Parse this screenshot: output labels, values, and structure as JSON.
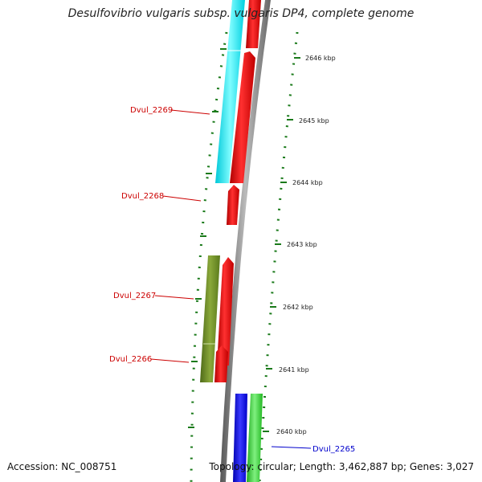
{
  "title": "Desulfovibrio vulgaris subsp. vulgaris DP4, complete genome",
  "footer": {
    "accession": "Accession: NC_008751",
    "topology": "Topology: circular; Length: 3,462,887 bp; Genes: 3,027"
  },
  "ticks": [
    "2646 kbp",
    "2645 kbp",
    "2644 kbp",
    "2643 kbp",
    "2642 kbp",
    "2641 kbp",
    "2640 kbp"
  ],
  "genes": {
    "dvul_2269": "Dvul_2269",
    "dvul_2268": "Dvul_2268",
    "dvul_2267": "Dvul_2267",
    "dvul_2266": "Dvul_2266",
    "dvul_2265": "Dvul_2265"
  },
  "colors": {
    "cds_red": "#ff0000",
    "feature_cyan": "#00ffff",
    "feature_olive": "#6b8e23",
    "feature_blue": "#0000ff",
    "feature_green": "#33cc33",
    "label_red": "#cc0000",
    "label_blue": "#0000cc",
    "backbone": "#888888",
    "ticks_green": "#1a7a1a"
  }
}
